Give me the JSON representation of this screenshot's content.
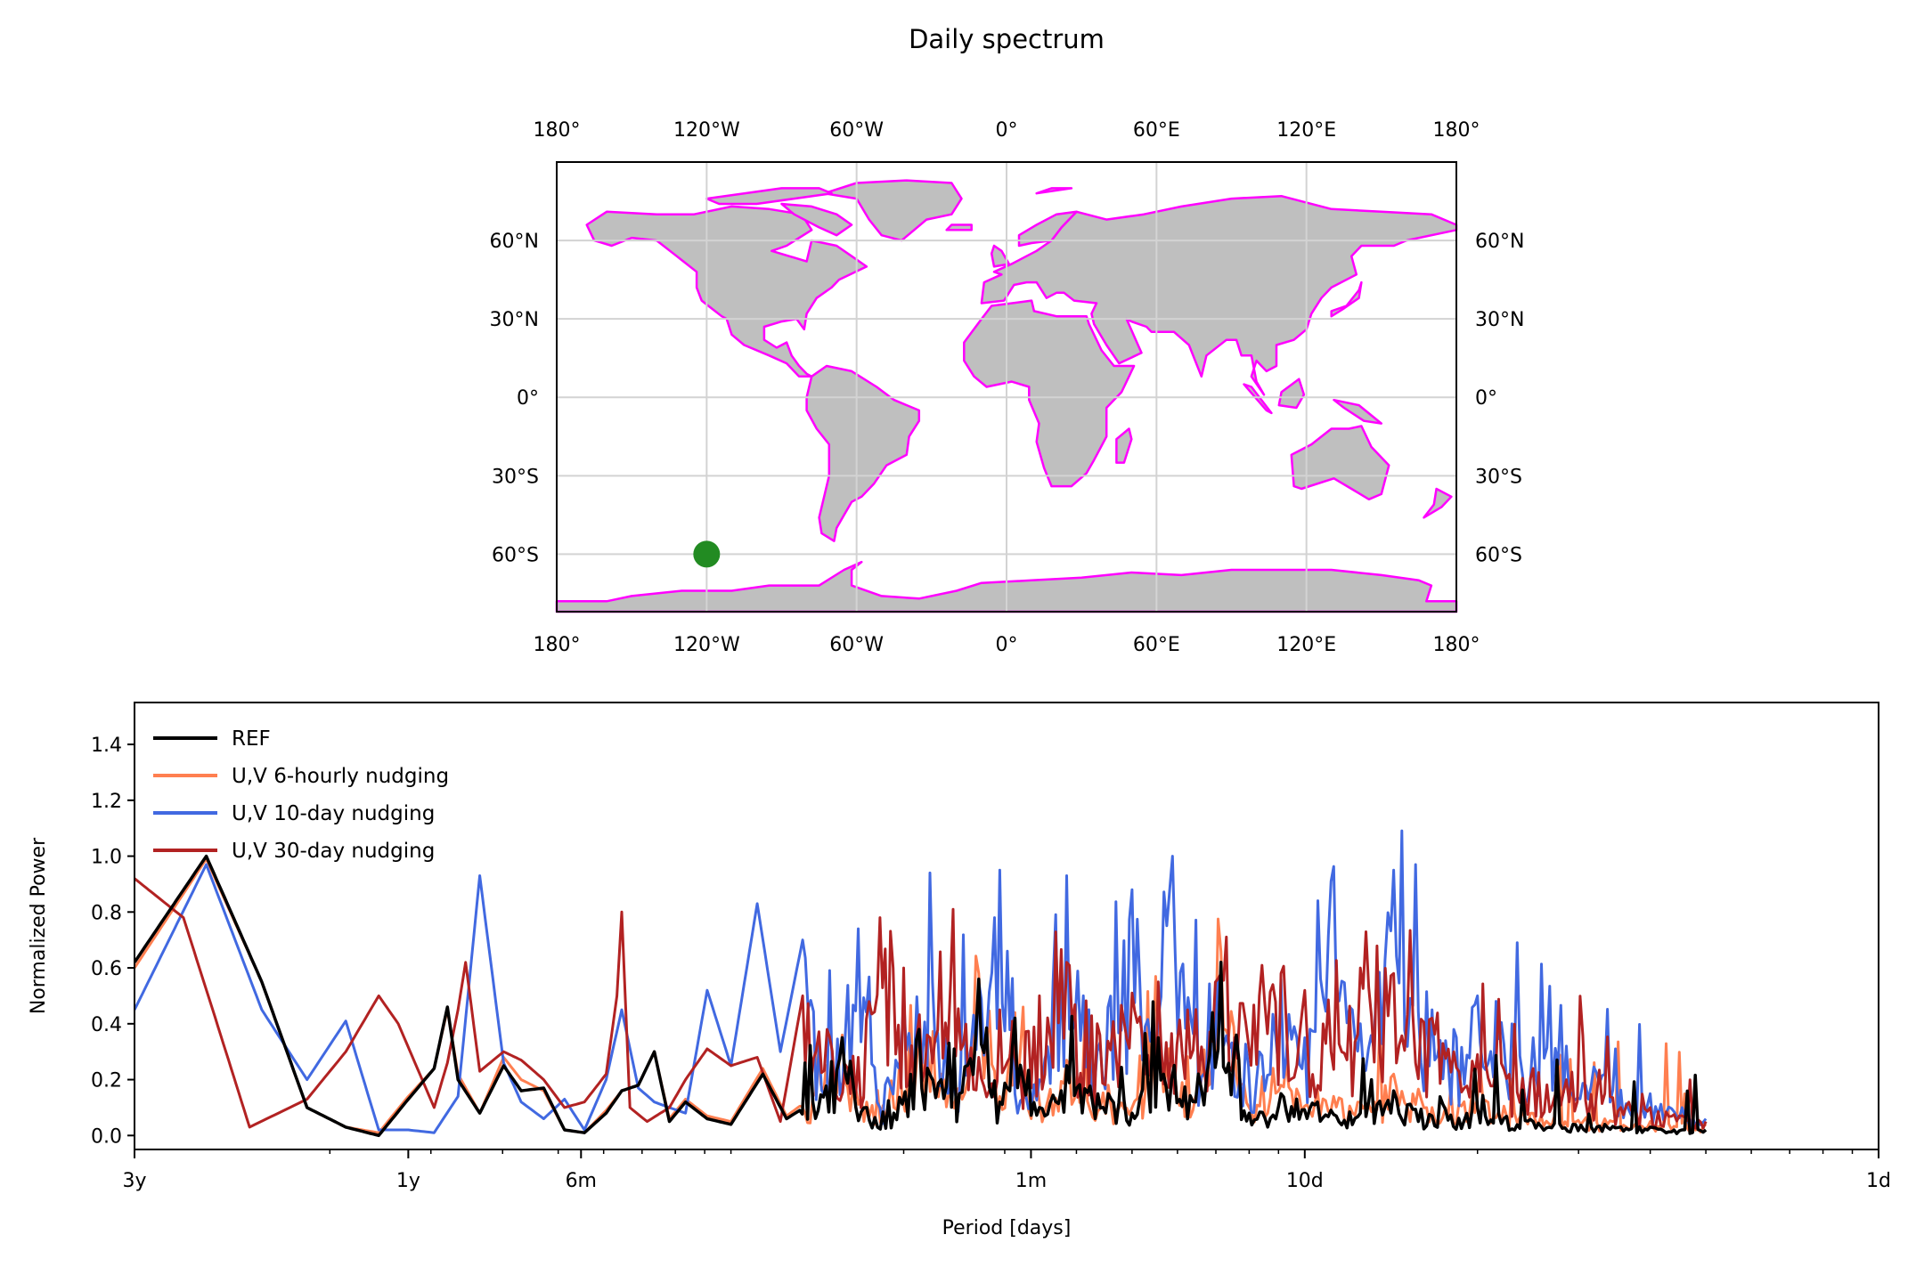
{
  "title": "Daily spectrum",
  "map": {
    "lon_ticks": [
      "180°",
      "120°W",
      "60°W",
      "0°",
      "60°E",
      "120°E",
      "180°"
    ],
    "lat_ticks": [
      "60°N",
      "30°N",
      "0°",
      "30°S",
      "60°S"
    ],
    "land_color": "#bfbfbf",
    "coast_color": "#ff00ff",
    "gridline_color": "#d3d3d3",
    "marker": {
      "lon": -120,
      "lat": -60,
      "color": "#228b22"
    }
  },
  "chart_data": {
    "type": "line",
    "xlabel": "Period [days]",
    "ylabel": "Normalized Power",
    "x_scale": "log",
    "x_ticks": [
      "3y",
      "1y",
      "6m",
      "1m",
      "10d",
      "1d"
    ],
    "x_tick_periods_days": [
      1095,
      365,
      182.5,
      30,
      10,
      1
    ],
    "y_ticks": [
      "0.0",
      "0.2",
      "0.4",
      "0.6",
      "0.8",
      "1.0",
      "1.2",
      "1.4"
    ],
    "ylim": [
      -0.05,
      1.55
    ],
    "grid": false,
    "legend_position": "top-left",
    "series": [
      {
        "name": "REF",
        "color": "#000000",
        "anchors": [
          [
            1095,
            0.62
          ],
          [
            821,
            1.0
          ],
          [
            657,
            0.55
          ],
          [
            548,
            0.1
          ],
          [
            469,
            0.03
          ],
          [
            411,
            0.0
          ],
          [
            365,
            0.13
          ],
          [
            329,
            0.24
          ],
          [
            312,
            0.46
          ],
          [
            299,
            0.2
          ],
          [
            274,
            0.08
          ],
          [
            249,
            0.25
          ],
          [
            232,
            0.16
          ],
          [
            212,
            0.17
          ],
          [
            195,
            0.02
          ],
          [
            180,
            0.01
          ],
          [
            165,
            0.08
          ],
          [
            155,
            0.16
          ],
          [
            145,
            0.18
          ],
          [
            136,
            0.3
          ],
          [
            128,
            0.05
          ],
          [
            120,
            0.12
          ],
          [
            110,
            0.06
          ],
          [
            100,
            0.04
          ],
          [
            88,
            0.22
          ],
          [
            80,
            0.06
          ],
          [
            72,
            0.12
          ],
          [
            64,
            0.35
          ],
          [
            58,
            0.1
          ],
          [
            52,
            0.08
          ],
          [
            47,
            0.38
          ],
          [
            43,
            0.2
          ],
          [
            40,
            0.15
          ],
          [
            37,
            0.56
          ],
          [
            34,
            0.12
          ],
          [
            32,
            0.42
          ],
          [
            29,
            0.1
          ],
          [
            26,
            0.25
          ],
          [
            22,
            0.15
          ],
          [
            20,
            0.08
          ],
          [
            18,
            0.35
          ],
          [
            15.5,
            0.12
          ],
          [
            14,
            0.62
          ],
          [
            12.5,
            0.08
          ],
          [
            11,
            0.15
          ],
          [
            9.5,
            0.12
          ],
          [
            8,
            0.08
          ],
          [
            7,
            0.16
          ],
          [
            6,
            0.07
          ],
          [
            5,
            0.1
          ],
          [
            4,
            0.05
          ],
          [
            3,
            0.04
          ],
          [
            2.5,
            0.03
          ],
          [
            2,
            0.02
          ]
        ]
      },
      {
        "name": "U,V 6-hourly nudging",
        "color": "#ff7f50",
        "anchors": [
          [
            1095,
            0.6
          ],
          [
            821,
            0.99
          ],
          [
            657,
            0.55
          ],
          [
            548,
            0.1
          ],
          [
            469,
            0.03
          ],
          [
            411,
            0.01
          ],
          [
            365,
            0.14
          ],
          [
            329,
            0.24
          ],
          [
            312,
            0.45
          ],
          [
            299,
            0.22
          ],
          [
            274,
            0.08
          ],
          [
            249,
            0.28
          ],
          [
            232,
            0.2
          ],
          [
            212,
            0.16
          ],
          [
            195,
            0.02
          ],
          [
            180,
            0.01
          ],
          [
            165,
            0.09
          ],
          [
            155,
            0.16
          ],
          [
            145,
            0.18
          ],
          [
            136,
            0.3
          ],
          [
            128,
            0.06
          ],
          [
            120,
            0.13
          ],
          [
            110,
            0.07
          ],
          [
            100,
            0.05
          ],
          [
            88,
            0.24
          ],
          [
            80,
            0.07
          ],
          [
            72,
            0.14
          ],
          [
            64,
            0.36
          ],
          [
            58,
            0.12
          ],
          [
            52,
            0.1
          ],
          [
            47,
            0.4
          ],
          [
            43,
            0.22
          ],
          [
            40,
            0.17
          ],
          [
            37,
            0.58
          ],
          [
            34,
            0.14
          ],
          [
            32,
            0.44
          ],
          [
            29,
            0.12
          ],
          [
            26,
            0.27
          ],
          [
            22,
            0.18
          ],
          [
            20,
            0.1
          ],
          [
            18,
            0.38
          ],
          [
            15.5,
            0.14
          ],
          [
            14,
            0.66
          ],
          [
            12.5,
            0.1
          ],
          [
            11,
            0.18
          ],
          [
            9.5,
            0.16
          ],
          [
            8,
            0.12
          ],
          [
            7,
            0.22
          ],
          [
            6,
            0.1
          ],
          [
            5,
            0.14
          ],
          [
            4,
            0.08
          ],
          [
            3,
            0.06
          ],
          [
            2.5,
            0.05
          ],
          [
            2,
            0.04
          ]
        ]
      },
      {
        "name": "U,V 10-day nudging",
        "color": "#4169e1",
        "anchors": [
          [
            1095,
            0.45
          ],
          [
            821,
            0.97
          ],
          [
            657,
            0.45
          ],
          [
            548,
            0.2
          ],
          [
            469,
            0.41
          ],
          [
            411,
            0.02
          ],
          [
            365,
            0.02
          ],
          [
            329,
            0.01
          ],
          [
            299,
            0.14
          ],
          [
            274,
            0.93
          ],
          [
            249,
            0.26
          ],
          [
            232,
            0.12
          ],
          [
            212,
            0.06
          ],
          [
            195,
            0.13
          ],
          [
            180,
            0.02
          ],
          [
            165,
            0.2
          ],
          [
            155,
            0.45
          ],
          [
            145,
            0.17
          ],
          [
            136,
            0.12
          ],
          [
            128,
            0.1
          ],
          [
            120,
            0.08
          ],
          [
            110,
            0.52
          ],
          [
            100,
            0.25
          ],
          [
            90,
            0.83
          ],
          [
            82,
            0.3
          ],
          [
            75,
            0.7
          ],
          [
            68,
            0.15
          ],
          [
            60,
            0.74
          ],
          [
            55,
            0.1
          ],
          [
            50,
            0.5
          ],
          [
            45,
            0.94
          ],
          [
            41,
            0.2
          ],
          [
            37,
            0.55
          ],
          [
            34,
            0.95
          ],
          [
            32,
            0.15
          ],
          [
            29,
            0.2
          ],
          [
            26,
            0.93
          ],
          [
            23,
            0.3
          ],
          [
            20,
            0.88
          ],
          [
            18,
            0.42
          ],
          [
            17,
            1.0
          ],
          [
            15,
            0.22
          ],
          [
            14,
            0.45
          ],
          [
            12,
            0.3
          ],
          [
            11,
            0.56
          ],
          [
            10,
            0.35
          ],
          [
            9,
            0.91
          ],
          [
            8,
            0.4
          ],
          [
            7.5,
            0.55
          ],
          [
            7,
            0.95
          ],
          [
            6,
            0.45
          ],
          [
            5.5,
            0.38
          ],
          [
            5,
            0.5
          ],
          [
            4,
            0.35
          ],
          [
            3.5,
            0.32
          ],
          [
            3,
            0.22
          ],
          [
            2.5,
            0.15
          ],
          [
            2.2,
            0.1
          ],
          [
            2,
            0.06
          ]
        ]
      },
      {
        "name": "U,V 30-day nudging",
        "color": "#b22222",
        "anchors": [
          [
            1095,
            0.92
          ],
          [
            900,
            0.78
          ],
          [
            800,
            0.45
          ],
          [
            690,
            0.03
          ],
          [
            548,
            0.13
          ],
          [
            469,
            0.3
          ],
          [
            411,
            0.5
          ],
          [
            380,
            0.4
          ],
          [
            329,
            0.1
          ],
          [
            312,
            0.26
          ],
          [
            299,
            0.45
          ],
          [
            290,
            0.62
          ],
          [
            274,
            0.23
          ],
          [
            249,
            0.3
          ],
          [
            232,
            0.27
          ],
          [
            212,
            0.2
          ],
          [
            195,
            0.1
          ],
          [
            180,
            0.12
          ],
          [
            165,
            0.22
          ],
          [
            158,
            0.5
          ],
          [
            155,
            0.8
          ],
          [
            150,
            0.1
          ],
          [
            140,
            0.05
          ],
          [
            128,
            0.1
          ],
          [
            120,
            0.2
          ],
          [
            110,
            0.31
          ],
          [
            100,
            0.25
          ],
          [
            90,
            0.28
          ],
          [
            82,
            0.05
          ],
          [
            75,
            0.5
          ],
          [
            68,
            0.38
          ],
          [
            60,
            0.28
          ],
          [
            55,
            0.78
          ],
          [
            50,
            0.6
          ],
          [
            45,
            0.35
          ],
          [
            41,
            0.81
          ],
          [
            37,
            0.28
          ],
          [
            34,
            0.45
          ],
          [
            32,
            0.28
          ],
          [
            29,
            0.5
          ],
          [
            26,
            0.62
          ],
          [
            23,
            0.4
          ],
          [
            20,
            0.51
          ],
          [
            18,
            0.55
          ],
          [
            16,
            0.45
          ],
          [
            14,
            0.58
          ],
          [
            12,
            0.5
          ],
          [
            11,
            0.58
          ],
          [
            10,
            0.52
          ],
          [
            9,
            0.3
          ],
          [
            8,
            0.6
          ],
          [
            7,
            0.58
          ],
          [
            6,
            0.42
          ],
          [
            5.5,
            0.3
          ],
          [
            5,
            0.29
          ],
          [
            4,
            0.24
          ],
          [
            3.5,
            0.2
          ],
          [
            3,
            0.15
          ],
          [
            2.5,
            0.1
          ],
          [
            2.2,
            0.07
          ],
          [
            2,
            0.05
          ]
        ]
      }
    ]
  }
}
